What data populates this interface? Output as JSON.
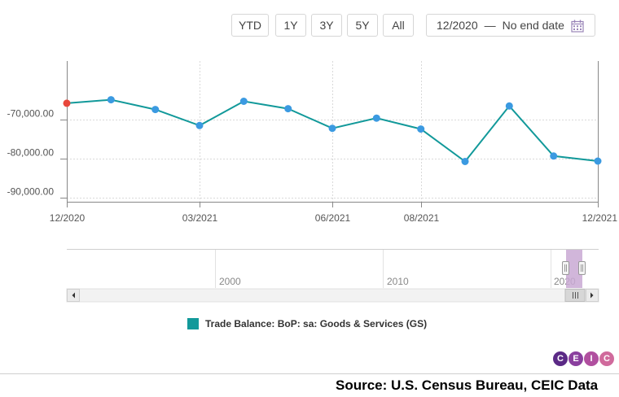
{
  "toolbar": {
    "buttons": [
      "YTD",
      "1Y",
      "3Y",
      "5Y",
      "All"
    ],
    "date_start": "12/2020",
    "date_separator": "—",
    "date_end": "No end date"
  },
  "chart_data": {
    "type": "line",
    "series": [
      {
        "name": "Trade Balance: BoP: sa: Goods & Services (GS)",
        "color": "#12999a",
        "x": [
          "12/2020",
          "01/2021",
          "02/2021",
          "03/2021",
          "04/2021",
          "05/2021",
          "06/2021",
          "07/2021",
          "08/2021",
          "09/2021",
          "10/2021",
          "11/2021",
          "12/2021"
        ],
        "values": [
          -65800,
          -64900,
          -67400,
          -71500,
          -65300,
          -67200,
          -72200,
          -69600,
          -72400,
          -80700,
          -66500,
          -79300,
          -80600
        ]
      }
    ],
    "first_point_color": "#e8473b",
    "point_color": "#3b9ae1",
    "ylim": [
      -91000,
      -55000
    ],
    "yticks": [
      -70000,
      -80000,
      -90000
    ],
    "ytick_labels": [
      "-70,000.00",
      "-80,000.00",
      "-90,000.00"
    ],
    "xtick_labels": [
      "12/2020",
      "03/2021",
      "06/2021",
      "08/2021",
      "12/2021"
    ],
    "xtick_indices": [
      0,
      3,
      6,
      8,
      12
    ],
    "grid": true
  },
  "navigator": {
    "labels": [
      "2000",
      "2010",
      "2020"
    ]
  },
  "legend": {
    "label": "Trade Balance: BoP: sa: Goods & Services (GS)",
    "color": "#12999a"
  },
  "brand": {
    "letters": [
      "C",
      "E",
      "I",
      "C"
    ],
    "colors": [
      "#5b2a86",
      "#8a3f9e",
      "#b04f9f",
      "#d06a9c"
    ]
  },
  "source": "Source: U.S. Census Bureau, CEIC Data"
}
